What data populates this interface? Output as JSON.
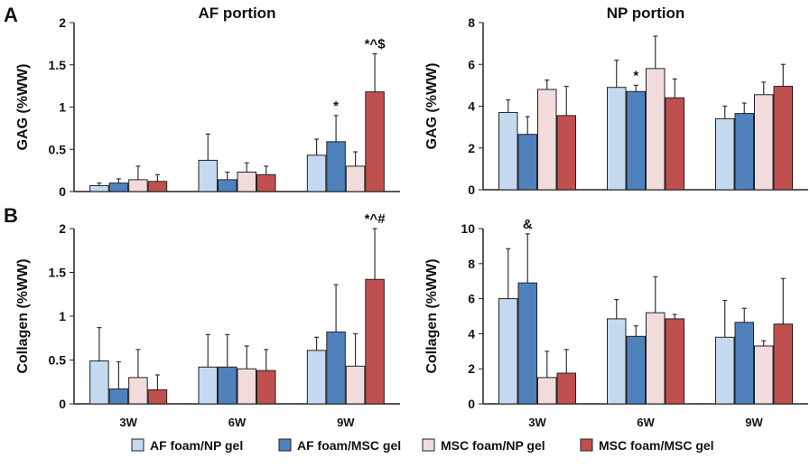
{
  "panel_labels": [
    "A",
    "B"
  ],
  "legend": [
    {
      "label": "AF foam/NP gel",
      "color": "#c5d9f1"
    },
    {
      "label": "AF foam/MSC gel",
      "color": "#4f81bd"
    },
    {
      "label": "MSC foam/NP gel",
      "color": "#f2dcdb"
    },
    {
      "label": "MSC foam/MSC gel",
      "color": "#c0504d"
    }
  ],
  "chart_data": [
    {
      "type": "bar",
      "title": "AF portion",
      "ylabel": "GAG (%WW)",
      "ylim": [
        0,
        2
      ],
      "yticks": [
        "0",
        "0.5",
        "1",
        "1.5",
        "2"
      ],
      "categories": [
        "3W",
        "6W",
        "9W"
      ],
      "show_xticks": false,
      "series": [
        {
          "name": "AF foam/NP gel",
          "values": [
            0.07,
            0.37,
            0.43
          ],
          "errors": [
            0.03,
            0.31,
            0.19
          ]
        },
        {
          "name": "AF foam/MSC gel",
          "values": [
            0.1,
            0.14,
            0.59
          ],
          "errors": [
            0.05,
            0.09,
            0.31
          ]
        },
        {
          "name": "MSC foam/NP gel",
          "values": [
            0.14,
            0.23,
            0.3
          ],
          "errors": [
            0.16,
            0.11,
            0.17
          ]
        },
        {
          "name": "MSC foam/MSC gel",
          "values": [
            0.12,
            0.2,
            1.18
          ],
          "errors": [
            0.08,
            0.1,
            0.45
          ]
        }
      ],
      "annotations": [
        {
          "series": 1,
          "category": 2,
          "text": "*"
        },
        {
          "series": 3,
          "category": 2,
          "text": "*^$"
        }
      ]
    },
    {
      "type": "bar",
      "title": "NP portion",
      "ylabel": "GAG (%WW)",
      "ylim": [
        0,
        8
      ],
      "yticks": [
        "0",
        "2",
        "4",
        "6",
        "8"
      ],
      "categories": [
        "3W",
        "6W",
        "9W"
      ],
      "show_xticks": false,
      "series": [
        {
          "name": "AF foam/NP gel",
          "values": [
            3.7,
            4.9,
            3.4
          ],
          "errors": [
            0.6,
            1.3,
            0.6
          ]
        },
        {
          "name": "AF foam/MSC gel",
          "values": [
            2.65,
            4.7,
            3.65
          ],
          "errors": [
            0.85,
            0.3,
            0.5
          ]
        },
        {
          "name": "MSC foam/NP gel",
          "values": [
            4.8,
            5.8,
            4.55
          ],
          "errors": [
            0.45,
            1.55,
            0.6
          ]
        },
        {
          "name": "MSC foam/MSC gel",
          "values": [
            3.55,
            4.4,
            4.95
          ],
          "errors": [
            1.4,
            0.9,
            1.05
          ]
        }
      ],
      "annotations": [
        {
          "series": 1,
          "category": 1,
          "text": "*"
        }
      ]
    },
    {
      "type": "bar",
      "title": "",
      "ylabel": "Collagen (%WW)",
      "ylim": [
        0,
        2
      ],
      "yticks": [
        "0",
        "0.5",
        "1",
        "1.5",
        "2"
      ],
      "categories": [
        "3W",
        "6W",
        "9W"
      ],
      "show_xticks": true,
      "series": [
        {
          "name": "AF foam/NP gel",
          "values": [
            0.49,
            0.42,
            0.61
          ],
          "errors": [
            0.38,
            0.37,
            0.15
          ]
        },
        {
          "name": "AF foam/MSC gel",
          "values": [
            0.17,
            0.42,
            0.82
          ],
          "errors": [
            0.31,
            0.37,
            0.54
          ]
        },
        {
          "name": "MSC foam/NP gel",
          "values": [
            0.3,
            0.4,
            0.43
          ],
          "errors": [
            0.32,
            0.26,
            0.37
          ]
        },
        {
          "name": "MSC foam/MSC gel",
          "values": [
            0.16,
            0.38,
            1.42
          ],
          "errors": [
            0.17,
            0.24,
            0.58
          ]
        }
      ],
      "annotations": [
        {
          "series": 3,
          "category": 2,
          "text": "*^#"
        }
      ]
    },
    {
      "type": "bar",
      "title": "",
      "ylabel": "Collagen (%WW)",
      "ylim": [
        0,
        10
      ],
      "yticks": [
        "0",
        "2",
        "4",
        "6",
        "8",
        "10"
      ],
      "categories": [
        "3W",
        "6W",
        "9W"
      ],
      "show_xticks": true,
      "series": [
        {
          "name": "AF foam/NP gel",
          "values": [
            6.0,
            4.85,
            3.8
          ],
          "errors": [
            2.85,
            1.1,
            2.1
          ]
        },
        {
          "name": "AF foam/MSC gel",
          "values": [
            6.9,
            3.85,
            4.65
          ],
          "errors": [
            2.8,
            0.6,
            0.8
          ]
        },
        {
          "name": "MSC foam/NP gel",
          "values": [
            1.5,
            5.2,
            3.3
          ],
          "errors": [
            1.5,
            2.05,
            0.3
          ]
        },
        {
          "name": "MSC foam/MSC gel",
          "values": [
            1.75,
            4.85,
            4.55
          ],
          "errors": [
            1.35,
            0.25,
            2.6
          ]
        }
      ],
      "annotations": [
        {
          "series": 1,
          "category": 0,
          "text": "&"
        }
      ]
    }
  ]
}
